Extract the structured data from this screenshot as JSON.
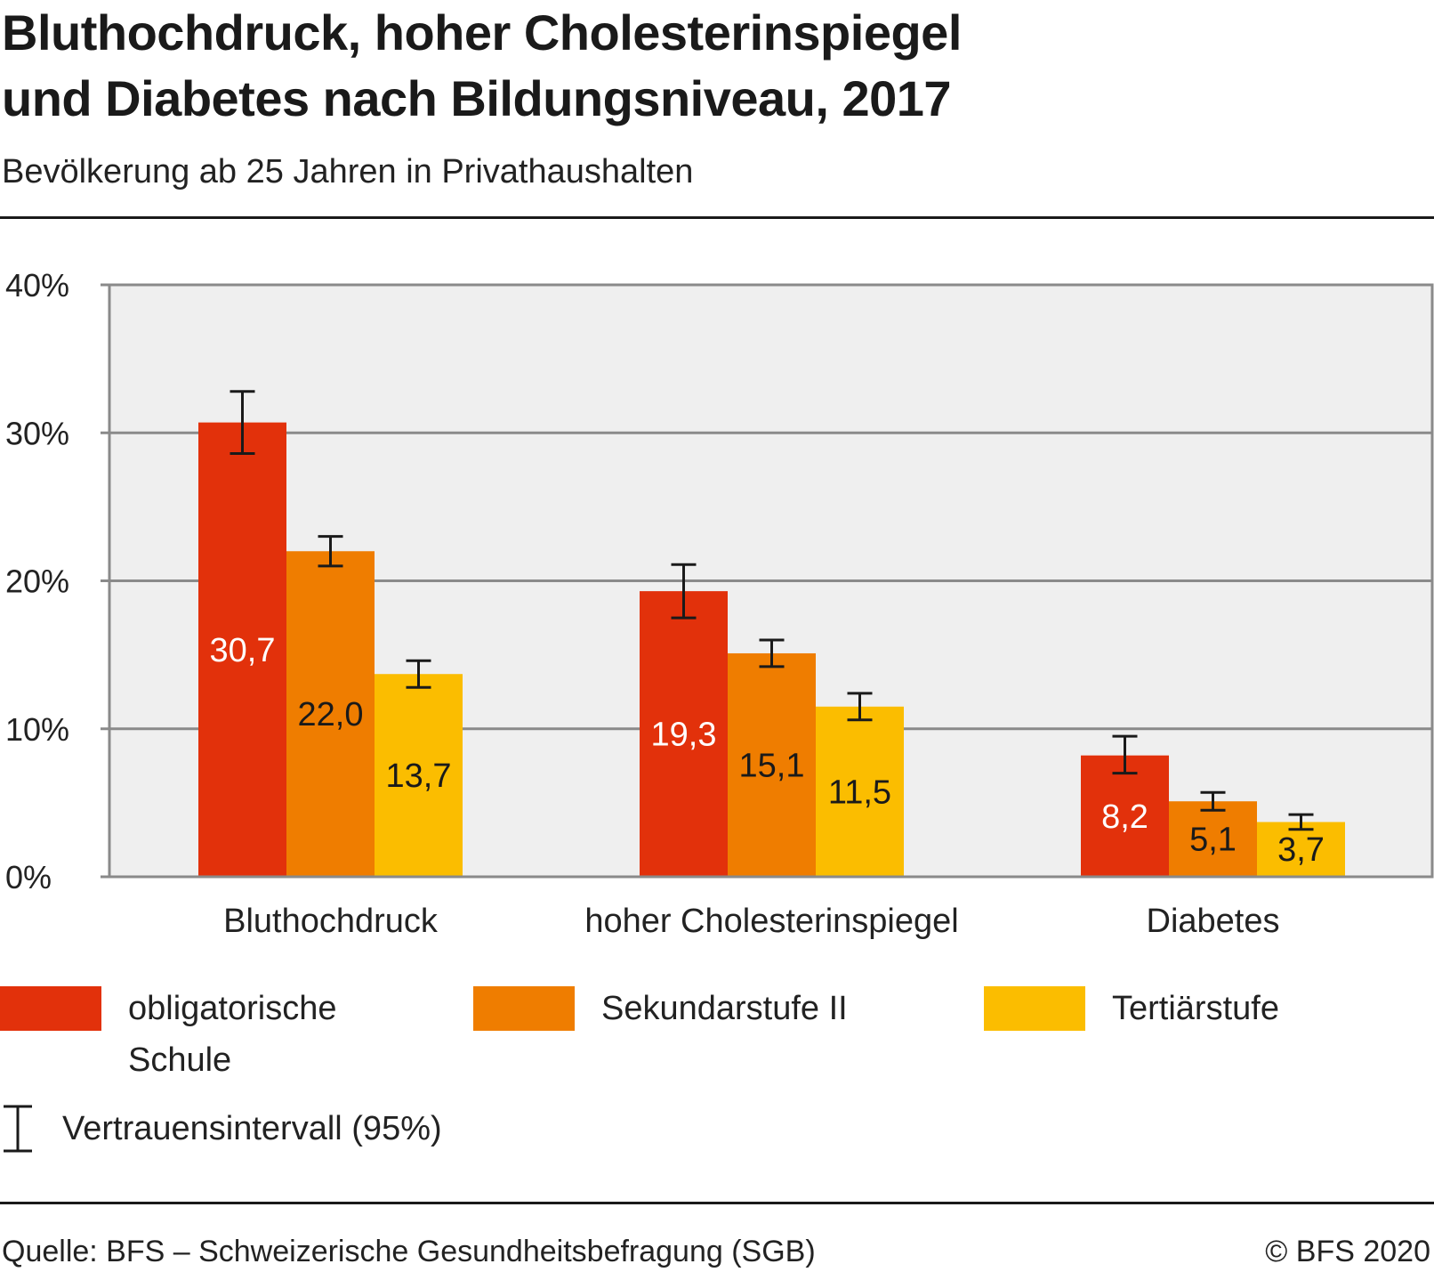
{
  "header": {
    "title_line1": "Bluthochdruck, hoher Cholesterinspiegel",
    "title_line2": "und Diabetes nach Bildungsniveau, 2017",
    "subtitle": "Bevölkerung ab 25 Jahren in Privathaushalten"
  },
  "chart_data": {
    "type": "bar",
    "categories": [
      "Bluthochdruck",
      "hoher Cholesterinspiegel",
      "Diabetes"
    ],
    "series": [
      {
        "name": "obligatorische Schule",
        "color": "#e2310b",
        "label_color": "#ffffff",
        "values": [
          30.7,
          19.3,
          8.2
        ],
        "value_labels": [
          "30,7",
          "19,3",
          "8,2"
        ],
        "ci_low": [
          28.6,
          17.5,
          7.0
        ],
        "ci_high": [
          32.8,
          21.1,
          9.5
        ]
      },
      {
        "name": "Sekundarstufe II",
        "color": "#ef7d00",
        "label_color": "#1a1a1a",
        "values": [
          22.0,
          15.1,
          5.1
        ],
        "value_labels": [
          "22,0",
          "15,1",
          "5,1"
        ],
        "ci_low": [
          21.0,
          14.2,
          4.5
        ],
        "ci_high": [
          23.0,
          16.0,
          5.7
        ]
      },
      {
        "name": "Tertiärstufe",
        "color": "#fbbd00",
        "label_color": "#1a1a1a",
        "values": [
          13.7,
          11.5,
          3.7
        ],
        "value_labels": [
          "13,7",
          "11,5",
          "3,7"
        ],
        "ci_low": [
          12.8,
          10.6,
          3.2
        ],
        "ci_high": [
          14.6,
          12.4,
          4.2
        ]
      }
    ],
    "ylim": [
      0,
      40
    ],
    "yticks": [
      0,
      10,
      20,
      30,
      40
    ],
    "ytick_labels": [
      "0%",
      "10%",
      "20%",
      "30%",
      "40%"
    ],
    "xlabel": "",
    "ylabel": "",
    "grid": true,
    "plot_background": "#efefef",
    "legend_position": "bottom",
    "error_bars": "95% confidence interval"
  },
  "legend": {
    "items": [
      {
        "label": "obligatorische Schule",
        "color": "#e2310b"
      },
      {
        "label": "Sekundarstufe II",
        "color": "#ef7d00"
      },
      {
        "label": "Tertiärstufe",
        "color": "#fbbd00"
      }
    ],
    "ci_label": "Vertrauensintervall (95%)"
  },
  "footer": {
    "source": "Quelle: BFS – Schweizerische Gesundheitsbefragung (SGB)",
    "copyright": "© BFS 2020"
  }
}
